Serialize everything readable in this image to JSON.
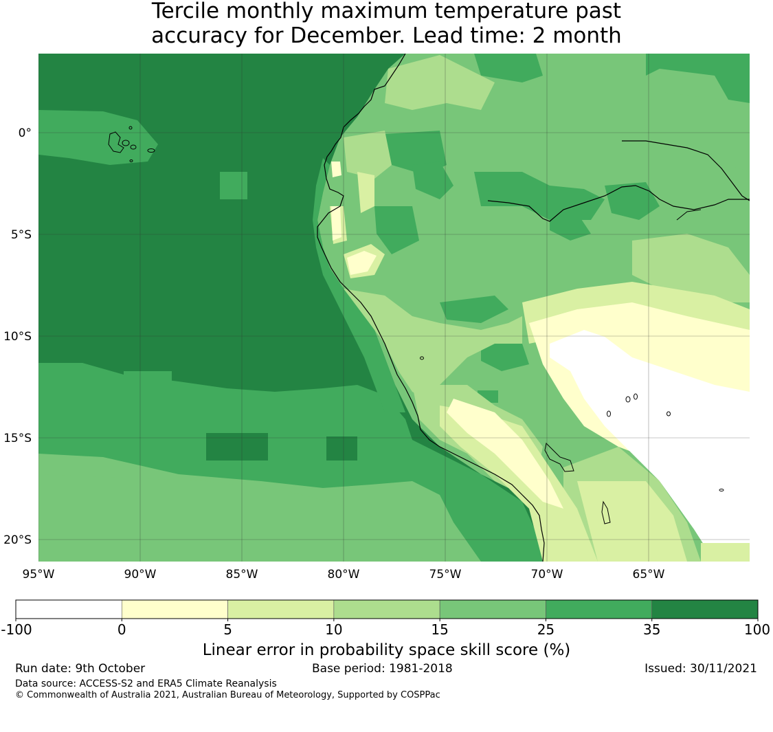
{
  "title": {
    "line1": "Tercile monthly maximum temperature past",
    "line2": "accuracy for December. Lead time: 2 month"
  },
  "axes": {
    "lat_labels": [
      "0°",
      "5°S",
      "10°S",
      "15°S",
      "20°S"
    ],
    "lon_labels": [
      "95°W",
      "90°W",
      "85°W",
      "80°W",
      "75°W",
      "70°W",
      "65°W"
    ]
  },
  "colorbar": {
    "label": "Linear error in probability space skill score (%)",
    "ticks": [
      "-100",
      "0",
      "5",
      "10",
      "15",
      "25",
      "35",
      "100"
    ],
    "colors": [
      "#ffffff",
      "#ffffcc",
      "#d9f0a3",
      "#addd8e",
      "#78c679",
      "#41ab5d",
      "#238443"
    ]
  },
  "footer": {
    "run_date": "Run date: 9th October",
    "base_period": "Base period: 1981-2018",
    "issued": "Issued: 30/11/2021",
    "data_source": "Data source: ACCESS-S2 and ERA5 Climate Reanalysis",
    "copyright": "© Commonwealth of Australia 2021, Australian Bureau of Meteorology, Supported by COSPPac"
  }
}
